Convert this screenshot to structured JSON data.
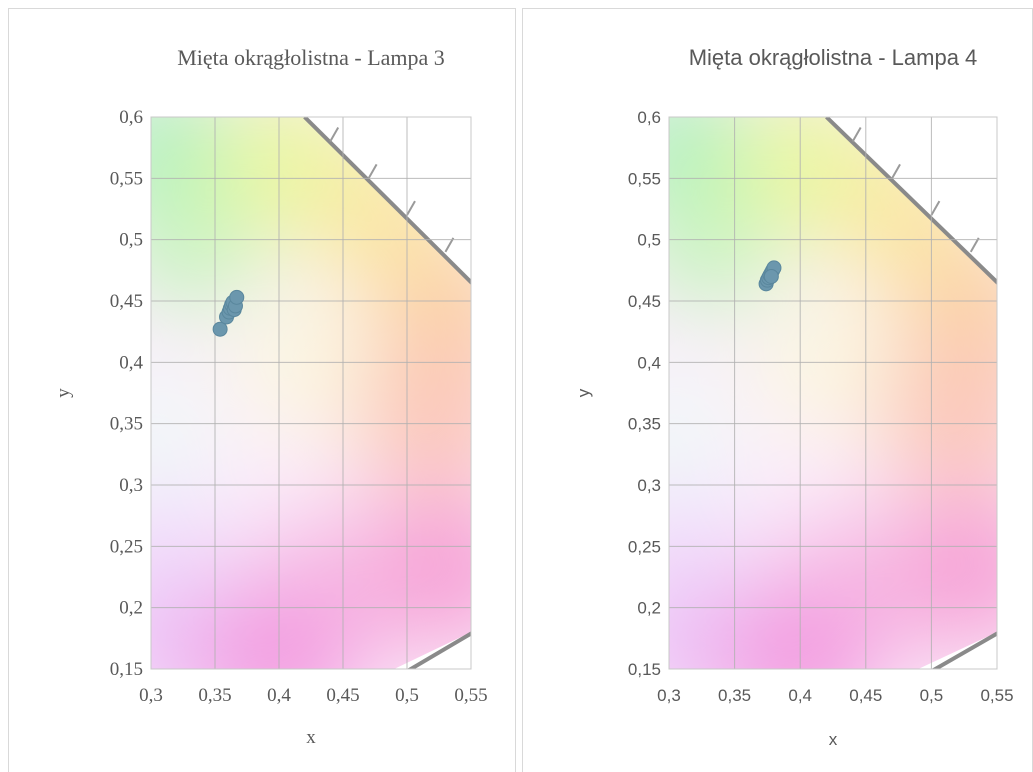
{
  "chart_data": [
    {
      "type": "scatter",
      "title": "Mięta okrągłolistna - Lampa 3",
      "xlabel": "x",
      "ylabel": "y",
      "xlim": [
        0.3,
        0.55
      ],
      "ylim": [
        0.15,
        0.6
      ],
      "x_ticks": [
        "0,3",
        "0,35",
        "0,4",
        "0,45",
        "0,5",
        "0,55"
      ],
      "y_ticks": [
        "0,15",
        "0,2",
        "0,25",
        "0,3",
        "0,35",
        "0,4",
        "0,45",
        "0,5",
        "0,55",
        "0,6"
      ],
      "grid": true,
      "font": "serif",
      "marker_color": "#6b97ad",
      "background": "CIE 1931 chromaticity diagram",
      "points": [
        {
          "x": 0.354,
          "y": 0.427
        },
        {
          "x": 0.359,
          "y": 0.437
        },
        {
          "x": 0.361,
          "y": 0.441
        },
        {
          "x": 0.362,
          "y": 0.444
        },
        {
          "x": 0.363,
          "y": 0.447
        },
        {
          "x": 0.364,
          "y": 0.449
        },
        {
          "x": 0.365,
          "y": 0.443
        },
        {
          "x": 0.366,
          "y": 0.446
        },
        {
          "x": 0.367,
          "y": 0.453
        }
      ]
    },
    {
      "type": "scatter",
      "title": "Mięta okrągłolistna - Lampa 4",
      "xlabel": "x",
      "ylabel": "y",
      "xlim": [
        0.3,
        0.55
      ],
      "ylim": [
        0.15,
        0.6
      ],
      "x_ticks": [
        "0,3",
        "0,35",
        "0,4",
        "0,45",
        "0,5",
        "0,55"
      ],
      "y_ticks": [
        "0,15",
        "0,2",
        "0,25",
        "0,3",
        "0,35",
        "0,4",
        "0,45",
        "0,5",
        "0,55",
        "0,6"
      ],
      "grid": true,
      "font": "sans",
      "marker_color": "#6b97ad",
      "background": "CIE 1931 chromaticity diagram",
      "points": [
        {
          "x": 0.374,
          "y": 0.464
        },
        {
          "x": 0.375,
          "y": 0.467
        },
        {
          "x": 0.376,
          "y": 0.469
        },
        {
          "x": 0.377,
          "y": 0.471
        },
        {
          "x": 0.378,
          "y": 0.473
        },
        {
          "x": 0.379,
          "y": 0.475
        },
        {
          "x": 0.38,
          "y": 0.477
        },
        {
          "x": 0.378,
          "y": 0.47
        }
      ]
    }
  ]
}
